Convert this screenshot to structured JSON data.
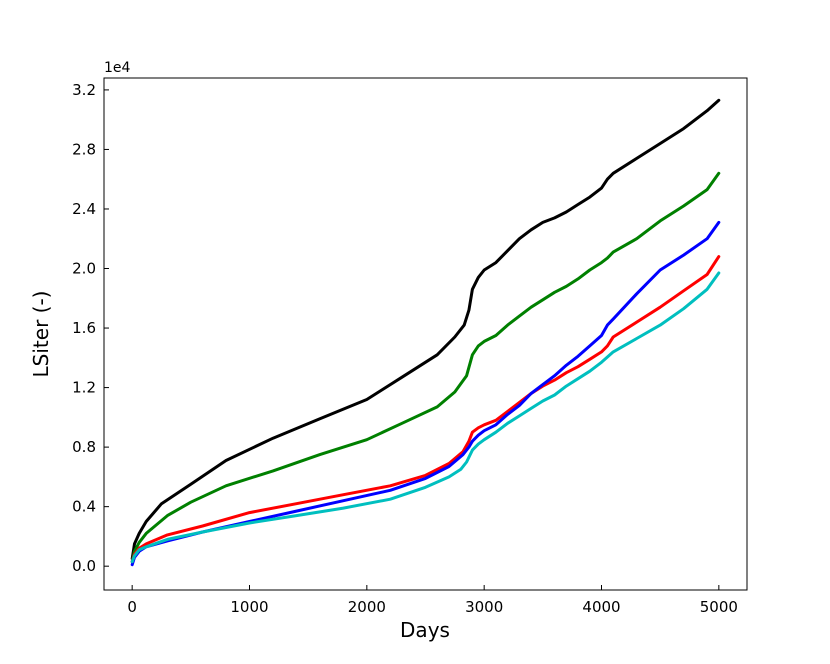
{
  "chart_data": {
    "type": "line",
    "title": "",
    "xlabel": "Days",
    "ylabel": "LSiter  (-)",
    "y_offset_label": "1e4",
    "xlim": [
      -240,
      5240
    ],
    "ylim": [
      -0.16,
      3.28
    ],
    "x_ticks": [
      0,
      1000,
      2000,
      3000,
      4000,
      5000
    ],
    "x_tick_labels": [
      "0",
      "1000",
      "2000",
      "3000",
      "4000",
      "5000"
    ],
    "y_ticks": [
      0.0,
      0.4,
      0.8,
      1.2,
      1.6,
      2.0,
      2.4,
      2.8,
      3.2
    ],
    "y_tick_labels": [
      "0.0",
      "0.4",
      "0.8",
      "1.2",
      "1.6",
      "2.0",
      "2.4",
      "2.8",
      "3.2"
    ],
    "grid": false,
    "legend": "none",
    "series": [
      {
        "color": "#000000",
        "x": [
          0,
          20,
          60,
          120,
          250,
          500,
          800,
          1200,
          1600,
          2000,
          2300,
          2600,
          2750,
          2830,
          2870,
          2900,
          2950,
          3000,
          3100,
          3200,
          3300,
          3400,
          3500,
          3600,
          3700,
          3800,
          3900,
          4000,
          4050,
          4100,
          4300,
          4500,
          4700,
          4900,
          5000
        ],
        "y": [
          0.05,
          0.15,
          0.22,
          0.3,
          0.42,
          0.55,
          0.71,
          0.86,
          0.99,
          1.12,
          1.27,
          1.42,
          1.54,
          1.62,
          1.72,
          1.86,
          1.94,
          1.99,
          2.04,
          2.12,
          2.2,
          2.26,
          2.31,
          2.34,
          2.38,
          2.43,
          2.48,
          2.54,
          2.6,
          2.64,
          2.74,
          2.84,
          2.94,
          3.06,
          3.13
        ]
      },
      {
        "color": "#008000",
        "x": [
          0,
          20,
          60,
          120,
          300,
          500,
          800,
          1200,
          1600,
          2000,
          2300,
          2600,
          2750,
          2850,
          2900,
          2950,
          3000,
          3100,
          3200,
          3300,
          3400,
          3500,
          3600,
          3700,
          3800,
          3900,
          4000,
          4050,
          4100,
          4300,
          4500,
          4700,
          4900,
          5000
        ],
        "y": [
          0.03,
          0.1,
          0.16,
          0.22,
          0.34,
          0.43,
          0.54,
          0.64,
          0.75,
          0.85,
          0.96,
          1.07,
          1.17,
          1.28,
          1.42,
          1.48,
          1.51,
          1.55,
          1.62,
          1.68,
          1.74,
          1.79,
          1.84,
          1.88,
          1.93,
          1.99,
          2.04,
          2.07,
          2.11,
          2.2,
          2.32,
          2.42,
          2.53,
          2.64
        ]
      },
      {
        "color": "#ff0000",
        "x": [
          0,
          20,
          60,
          120,
          300,
          600,
          1000,
          1400,
          1800,
          2200,
          2500,
          2700,
          2820,
          2870,
          2900,
          2950,
          3000,
          3100,
          3200,
          3300,
          3400,
          3500,
          3600,
          3700,
          3800,
          3900,
          4000,
          4050,
          4100,
          4300,
          4500,
          4700,
          4900,
          5000
        ],
        "y": [
          0.03,
          0.08,
          0.12,
          0.15,
          0.21,
          0.27,
          0.36,
          0.42,
          0.48,
          0.54,
          0.61,
          0.69,
          0.77,
          0.84,
          0.9,
          0.93,
          0.95,
          0.98,
          1.04,
          1.1,
          1.16,
          1.21,
          1.25,
          1.3,
          1.34,
          1.39,
          1.44,
          1.48,
          1.54,
          1.64,
          1.74,
          1.85,
          1.96,
          2.08
        ]
      },
      {
        "color": "#0000ff",
        "x": [
          0,
          20,
          60,
          120,
          300,
          600,
          1000,
          1400,
          1800,
          2200,
          2500,
          2700,
          2820,
          2870,
          2900,
          2950,
          3000,
          3100,
          3200,
          3300,
          3400,
          3500,
          3600,
          3700,
          3800,
          3900,
          4000,
          4050,
          4100,
          4300,
          4500,
          4700,
          4900,
          5000
        ],
        "y": [
          0.01,
          0.06,
          0.1,
          0.13,
          0.17,
          0.23,
          0.3,
          0.37,
          0.44,
          0.51,
          0.59,
          0.67,
          0.75,
          0.8,
          0.84,
          0.88,
          0.91,
          0.95,
          1.02,
          1.08,
          1.16,
          1.22,
          1.28,
          1.35,
          1.41,
          1.48,
          1.55,
          1.62,
          1.66,
          1.83,
          1.99,
          2.09,
          2.2,
          2.31
        ]
      },
      {
        "color": "#00bfbf",
        "x": [
          0,
          20,
          60,
          120,
          300,
          600,
          1000,
          1400,
          1800,
          2200,
          2500,
          2700,
          2800,
          2850,
          2900,
          2950,
          3000,
          3100,
          3200,
          3300,
          3400,
          3500,
          3600,
          3700,
          3800,
          3900,
          4000,
          4100,
          4300,
          4500,
          4700,
          4900,
          5000
        ],
        "y": [
          0.03,
          0.07,
          0.11,
          0.13,
          0.18,
          0.23,
          0.29,
          0.34,
          0.39,
          0.45,
          0.53,
          0.6,
          0.65,
          0.7,
          0.78,
          0.82,
          0.85,
          0.9,
          0.96,
          1.01,
          1.06,
          1.11,
          1.15,
          1.21,
          1.26,
          1.31,
          1.37,
          1.44,
          1.53,
          1.62,
          1.73,
          1.86,
          1.97
        ]
      }
    ]
  }
}
